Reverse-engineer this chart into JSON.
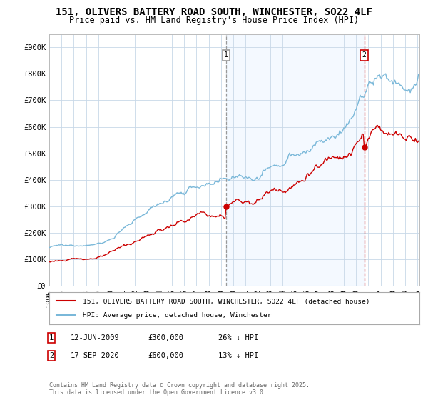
{
  "title1": "151, OLIVERS BATTERY ROAD SOUTH, WINCHESTER, SO22 4LF",
  "title2": "Price paid vs. HM Land Registry's House Price Index (HPI)",
  "ylim": [
    0,
    950000
  ],
  "yticks": [
    0,
    100000,
    200000,
    300000,
    400000,
    500000,
    600000,
    700000,
    800000,
    900000
  ],
  "ytick_labels": [
    "£0",
    "£100K",
    "£200K",
    "£300K",
    "£400K",
    "£500K",
    "£600K",
    "£700K",
    "£800K",
    "£900K"
  ],
  "hpi_color": "#7ab8d9",
  "price_color": "#cc0000",
  "legend_price": "151, OLIVERS BATTERY ROAD SOUTH, WINCHESTER, SO22 4LF (detached house)",
  "legend_hpi": "HPI: Average price, detached house, Winchester",
  "footer": "Contains HM Land Registry data © Crown copyright and database right 2025.\nThis data is licensed under the Open Government Licence v3.0.",
  "bg_color": "#ffffff",
  "grid_color": "#c8d8e8",
  "shade_color": "#ddeeff",
  "vline1_color": "#999999",
  "vline2_color": "#cc0000"
}
